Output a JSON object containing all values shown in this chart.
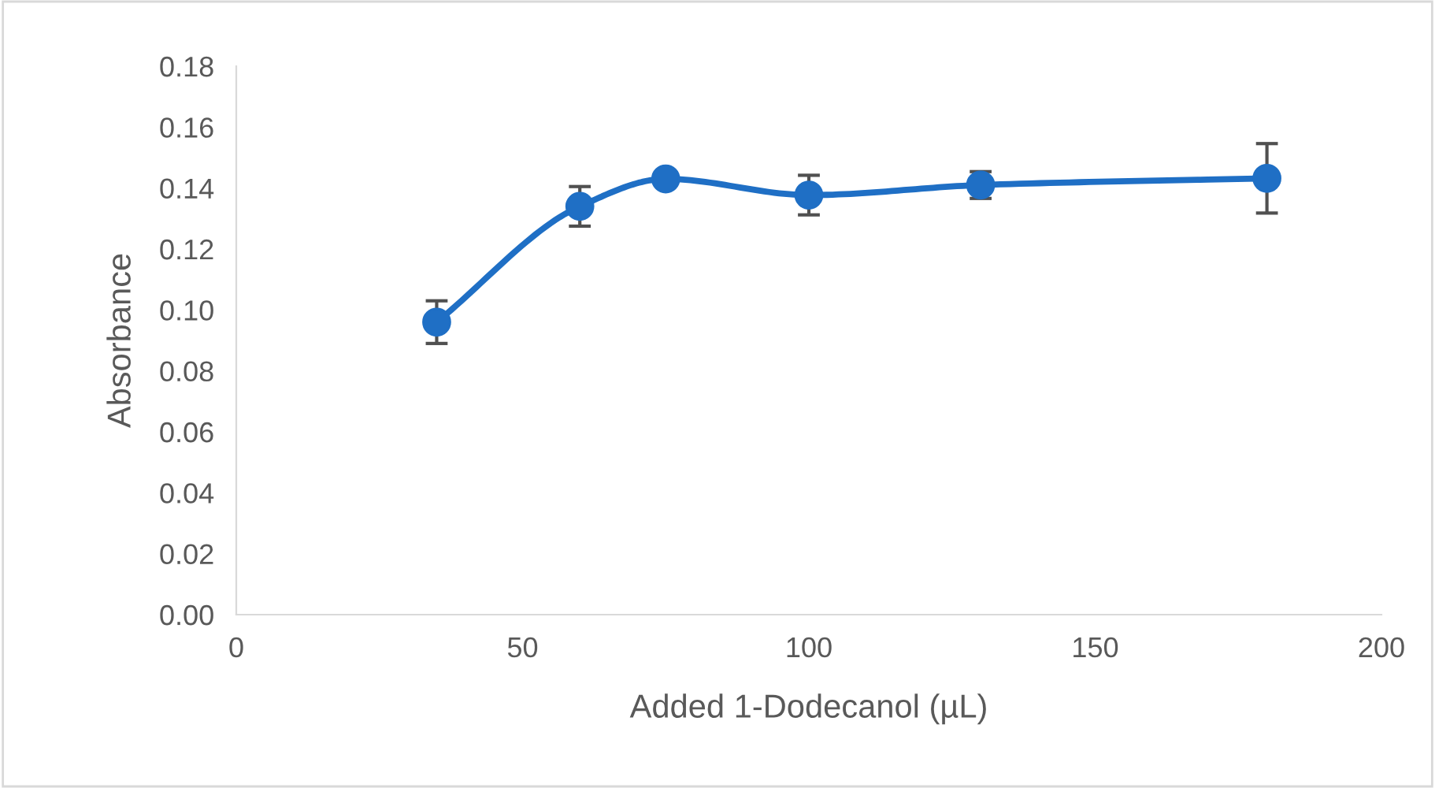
{
  "chart_data": {
    "type": "line",
    "xlabel": "Added 1-Dodecanol (µL)",
    "ylabel": "Absorbance",
    "x": [
      35,
      60,
      75,
      100,
      130,
      180
    ],
    "series": [
      {
        "color": "#1f6fc5",
        "values": [
          0.096,
          0.134,
          0.143,
          0.1377,
          0.141,
          0.1432
        ],
        "errors": [
          0.007,
          0.0065,
          null,
          0.0065,
          0.0044,
          0.0114
        ]
      }
    ],
    "marker": "circle",
    "line_style": "solid",
    "grid": false,
    "legend": false,
    "xlim": [
      0,
      200
    ],
    "xticks": [
      0,
      50,
      100,
      150,
      200
    ],
    "ylim": [
      0,
      0.18
    ],
    "yticks": [
      {
        "value": 0,
        "label": "0.00"
      },
      {
        "value": 0.02,
        "label": "0.02"
      },
      {
        "value": 0.04,
        "label": "0.04"
      },
      {
        "value": 0.06,
        "label": "0.06"
      },
      {
        "value": 0.08,
        "label": "0.08"
      },
      {
        "value": 0.1,
        "label": "0.10"
      },
      {
        "value": 0.12,
        "label": "0.12"
      },
      {
        "value": 0.14,
        "label": "0.14"
      },
      {
        "value": 0.16,
        "label": "0.16"
      },
      {
        "value": 0.18,
        "label": "0.18"
      }
    ]
  }
}
